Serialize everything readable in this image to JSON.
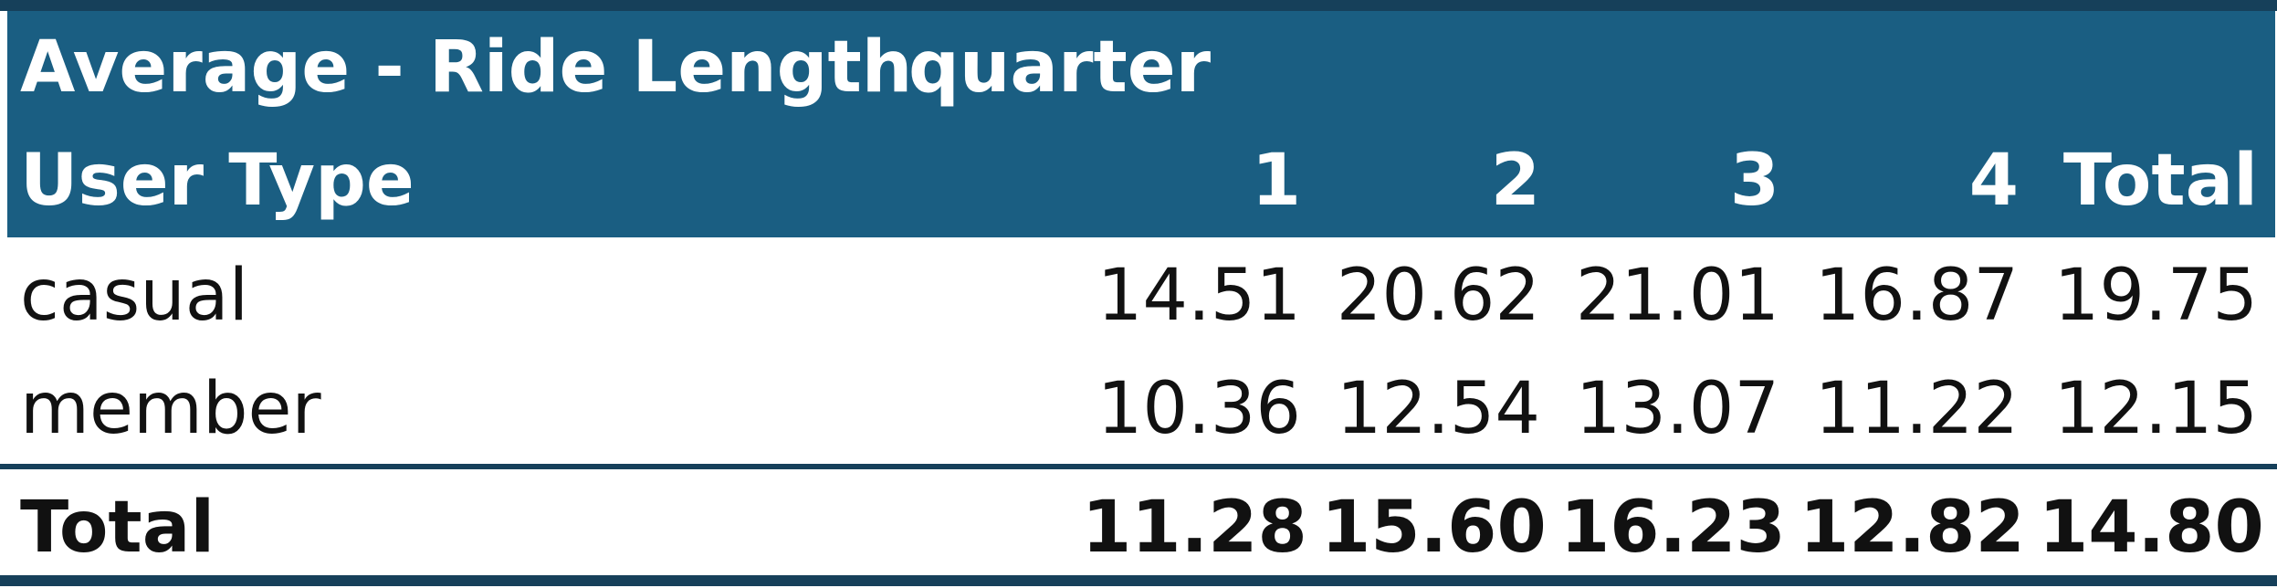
{
  "pivot": {
    "value_field": "Average - Ride Length",
    "column_field": "quarter",
    "row_field": "User Type",
    "columns": [
      "1",
      "2",
      "3",
      "4",
      "Total"
    ],
    "rows": [
      {
        "label": "casual",
        "values": [
          "14.51",
          "20.62",
          "21.01",
          "16.87",
          "19.75"
        ]
      },
      {
        "label": "member",
        "values": [
          "10.36",
          "12.54",
          "13.07",
          "11.22",
          "12.15"
        ]
      }
    ],
    "total": {
      "label": "Total",
      "values": [
        "11.28",
        "15.60",
        "16.23",
        "12.82",
        "14.80"
      ]
    }
  },
  "colors": {
    "header_fill": "#1a5e82",
    "rule": "#16405a",
    "header_text": "#ffffff",
    "body_text": "#111111"
  }
}
